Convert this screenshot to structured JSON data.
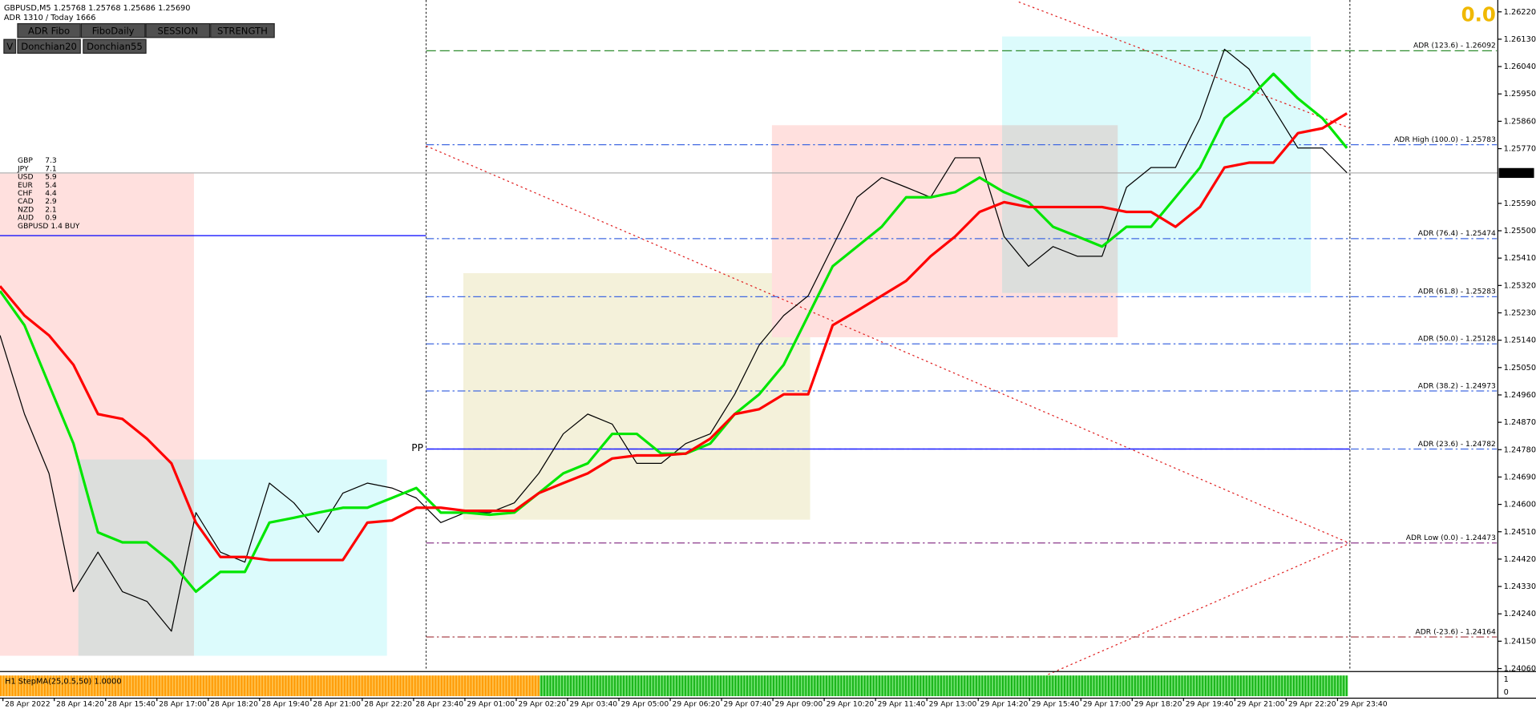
{
  "header": {
    "symbol_line": "GBPUSD,M5  1.25768 1.25768 1.25686 1.25690",
    "adr_line": "ADR 1310 / Today 1666",
    "signal": "0.0"
  },
  "buttons": [
    {
      "label": "ADR Fibo",
      "color": "#00ff00"
    },
    {
      "label": "FiboDaily",
      "color": "#ff2020"
    },
    {
      "label": "SESSION",
      "color": "#00ff00"
    },
    {
      "label": "STRENGTH",
      "color": "#00ff00"
    },
    {
      "label": "V",
      "color": "#ffffff"
    },
    {
      "label": "Donchian20",
      "color": "#00ff00"
    },
    {
      "label": "Donchian55",
      "color": "#00ff00"
    }
  ],
  "strength": {
    "rows": [
      {
        "currency": "GBP",
        "value": 7.3,
        "color": "#b0309a"
      },
      {
        "currency": "JPY",
        "value": 7.1,
        "color": "#c040c0"
      },
      {
        "currency": "USD",
        "value": 5.9,
        "color": "#9acd32"
      },
      {
        "currency": "EUR",
        "value": 5.4,
        "color": "#32b432"
      },
      {
        "currency": "CHF",
        "value": 4.4,
        "color": "#4a78e0"
      },
      {
        "currency": "CAD",
        "value": 2.9,
        "color": "#e01010"
      },
      {
        "currency": "NZD",
        "value": 2.1,
        "color": "#e01010"
      },
      {
        "currency": "AUD",
        "value": 0.9,
        "color": "#e01010"
      }
    ],
    "signal": "GBPUSD 1.4 BUY",
    "signal_color": "#1a9a1a"
  },
  "chart_data": {
    "type": "line",
    "ylim": [
      1.2406,
      1.2622
    ],
    "yticks": [
      {
        "value": 1.2622,
        "label": "1.26220"
      },
      {
        "value": 1.2613,
        "label": "1.26130"
      },
      {
        "value": 1.2604,
        "label": "1.26040"
      },
      {
        "value": 1.2595,
        "label": "1.25950"
      },
      {
        "value": 1.2586,
        "label": "1.25860"
      },
      {
        "value": 1.2577,
        "label": "1.25770"
      },
      {
        "value": 1.2559,
        "label": "1.25590"
      },
      {
        "value": 1.255,
        "label": "1.25500"
      },
      {
        "value": 1.2541,
        "label": "1.25410"
      },
      {
        "value": 1.2532,
        "label": "1.25320"
      },
      {
        "value": 1.2523,
        "label": "1.25230"
      },
      {
        "value": 1.2514,
        "label": "1.25140"
      },
      {
        "value": 1.2505,
        "label": "1.25050"
      },
      {
        "value": 1.2496,
        "label": "1.24960"
      },
      {
        "value": 1.2487,
        "label": "1.24870"
      },
      {
        "value": 1.2478,
        "label": "1.24780"
      },
      {
        "value": 1.2469,
        "label": "1.24690"
      },
      {
        "value": 1.246,
        "label": "1.24600"
      },
      {
        "value": 1.2451,
        "label": "1.24510"
      },
      {
        "value": 1.2442,
        "label": "1.24420"
      },
      {
        "value": 1.2433,
        "label": "1.24330"
      },
      {
        "value": 1.2424,
        "label": "1.24240"
      },
      {
        "value": 1.2415,
        "label": "1.24150"
      },
      {
        "value": 1.2406,
        "label": "1.24060"
      }
    ],
    "current_price": {
      "value": 1.2569,
      "label": "1.25690"
    },
    "hline_color": "#0000ff",
    "hline_value": 1.25484,
    "series": [
      {
        "color": "#000000",
        "values": [
          1.25156,
          1.24897,
          1.24702,
          1.24313,
          1.24443,
          1.24313,
          1.24281,
          1.24183,
          1.24573,
          1.24443,
          1.2441,
          1.2467,
          1.24605,
          1.24508,
          1.24637,
          1.2467,
          1.24654,
          1.24621,
          1.2454,
          1.24573,
          1.24573,
          1.24605,
          1.24702,
          1.24832,
          1.24897,
          1.24864,
          1.24735,
          1.24735,
          1.248,
          1.24832,
          1.24962,
          1.25124,
          1.25221,
          1.25286,
          1.25448,
          1.2561,
          1.25675,
          1.25643,
          1.2561,
          1.2574,
          1.2574,
          1.25481,
          1.25383,
          1.25448,
          1.25416,
          1.25416,
          1.25643,
          1.25708,
          1.25708,
          1.2587,
          1.26097,
          1.26032,
          1.25902,
          1.25772,
          1.25772,
          1.25691
        ]
      },
      {
        "color": "#00e600",
        "values": [
          1.25302,
          1.25189,
          1.24994,
          1.248,
          1.24508,
          1.24475,
          1.24475,
          1.2441,
          1.24313,
          1.24378,
          1.24378,
          1.2454,
          1.24556,
          1.24573,
          1.24589,
          1.24589,
          1.24621,
          1.24654,
          1.24573,
          1.24573,
          1.24566,
          1.24573,
          1.24637,
          1.24702,
          1.24735,
          1.24832,
          1.24832,
          1.24767,
          1.24767,
          1.248,
          1.24897,
          1.24962,
          1.25059,
          1.25221,
          1.25383,
          1.25448,
          1.25513,
          1.2561,
          1.2561,
          1.25627,
          1.25675,
          1.25627,
          1.25594,
          1.25513,
          1.25481,
          1.25448,
          1.25513,
          1.25513,
          1.2561,
          1.25708,
          1.2587,
          1.25935,
          1.26016,
          1.25935,
          1.2587,
          1.25772
        ]
      },
      {
        "color": "#ff0000",
        "values": [
          1.25318,
          1.25221,
          1.25156,
          1.25059,
          1.24897,
          1.24881,
          1.24816,
          1.24735,
          1.2454,
          1.24427,
          1.24427,
          1.24417,
          1.24417,
          1.24417,
          1.24417,
          1.2454,
          1.24547,
          1.24589,
          1.24589,
          1.24579,
          1.24579,
          1.24579,
          1.24637,
          1.2467,
          1.24702,
          1.24751,
          1.24761,
          1.24761,
          1.24767,
          1.24816,
          1.24897,
          1.24913,
          1.24962,
          1.24962,
          1.25189,
          1.25237,
          1.25286,
          1.25335,
          1.25416,
          1.25481,
          1.25562,
          1.25594,
          1.25578,
          1.25578,
          1.25578,
          1.25578,
          1.25562,
          1.25562,
          1.25513,
          1.25578,
          1.25708,
          1.25724,
          1.25724,
          1.25821,
          1.25837,
          1.25886
        ]
      }
    ],
    "levels": [
      {
        "label": "ADR (123.6) - 1.26092",
        "value": 1.26092,
        "color": "#2e8b2e"
      },
      {
        "label": "ADR High (100.0) - 1.25783",
        "value": 1.25783,
        "color": "#4169e1"
      },
      {
        "label": "ADR (76.4) - 1.25474",
        "value": 1.25474,
        "color": "#4169e1"
      },
      {
        "label": "ADR (61.8) - 1.25283",
        "value": 1.25283,
        "color": "#4169e1"
      },
      {
        "label": "ADR (50.0) - 1.25128",
        "value": 1.25128,
        "color": "#4169e1"
      },
      {
        "label": "ADR (38.2) - 1.24973",
        "value": 1.24973,
        "color": "#4169e1"
      },
      {
        "label": "ADR (23.6) - 1.24782",
        "value": 1.24782,
        "color": "#4169e1"
      },
      {
        "label": "ADR Low (0.0) - 1.24473",
        "value": 1.24473,
        "color": "#8b3a8b"
      },
      {
        "label": "ADR (-23.6) - 1.24164",
        "value": 1.24164,
        "color": "#a0303a"
      }
    ],
    "pivot": {
      "label": "PP",
      "value": 1.24782,
      "color": "#2020ff"
    },
    "time_labels": [
      "28 Apr 2022",
      "28 Apr 14:20",
      "28 Apr 15:40",
      "28 Apr 17:00",
      "28 Apr 18:20",
      "28 Apr 19:40",
      "28 Apr 21:00",
      "28 Apr 22:20",
      "28 Apr 23:40",
      "29 Apr 01:00",
      "29 Apr 02:20",
      "29 Apr 03:40",
      "29 Apr 05:00",
      "29 Apr 06:20",
      "29 Apr 07:40",
      "29 Apr 09:00",
      "29 Apr 10:20",
      "29 Apr 11:40",
      "29 Apr 13:00",
      "29 Apr 14:20",
      "29 Apr 15:40",
      "29 Apr 17:00",
      "29 Apr 18:20",
      "29 Apr 19:40",
      "29 Apr 21:00",
      "29 Apr 22:20",
      "29 Apr 23:40"
    ],
    "indicator": {
      "label": "H1 StepMA(25,0.5,50) 1.0000",
      "yticks": [
        1,
        0
      ]
    }
  }
}
